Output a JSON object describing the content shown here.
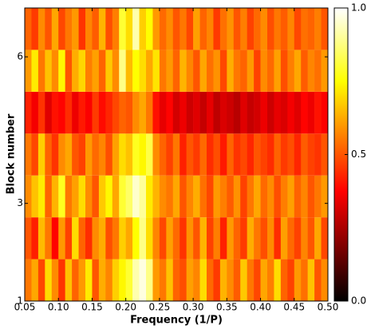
{
  "chart_data": {
    "type": "heatmap",
    "xlabel": "Frequency (1/P)",
    "ylabel": "Block number",
    "xlim": [
      0.05,
      0.5
    ],
    "xticks": [
      0.05,
      {
        "value": 0.1,
        "label": "0.10"
      },
      0.15,
      {
        "value": 0.2,
        "label": "0.20"
      },
      0.25,
      {
        "value": 0.3,
        "label": "0.30"
      },
      0.35,
      {
        "value": 0.4,
        "label": "0.40"
      },
      0.45,
      {
        "value": 0.5,
        "label": "0.50"
      }
    ],
    "ylim": [
      1,
      7
    ],
    "yticks": [
      1,
      3,
      6
    ],
    "colormap": "hot",
    "clim": [
      0,
      1
    ],
    "cticks": [
      {
        "value": 0,
        "label": "0.0"
      },
      0.5,
      {
        "value": 1,
        "label": "1.0"
      }
    ],
    "z": [
      [
        0.55,
        0.62,
        0.48,
        0.7,
        0.58,
        0.45,
        0.66,
        0.52,
        0.6,
        0.72,
        0.5,
        0.63,
        0.57,
        0.68,
        0.74,
        0.8,
        0.92,
        0.97,
        0.88,
        0.6,
        0.55,
        0.66,
        0.52,
        0.49,
        0.61,
        0.57,
        0.7,
        0.53,
        0.46,
        0.64,
        0.58,
        0.51,
        0.67,
        0.55,
        0.48,
        0.62,
        0.56,
        0.7,
        0.52,
        0.47,
        0.6,
        0.54,
        0.66,
        0.5,
        0.58
      ],
      [
        0.5,
        0.42,
        0.65,
        0.55,
        0.38,
        0.6,
        0.47,
        0.7,
        0.52,
        0.44,
        0.58,
        0.63,
        0.49,
        0.55,
        0.68,
        0.62,
        0.75,
        0.88,
        0.7,
        0.57,
        0.48,
        0.61,
        0.53,
        0.45,
        0.59,
        0.5,
        0.64,
        0.47,
        0.56,
        0.42,
        0.6,
        0.52,
        0.46,
        0.63,
        0.55,
        0.49,
        0.58,
        0.44,
        0.61,
        0.53,
        0.47,
        0.57,
        0.5,
        0.62,
        0.48
      ],
      [
        0.58,
        0.66,
        0.72,
        0.52,
        0.64,
        0.78,
        0.55,
        0.61,
        0.7,
        0.58,
        0.5,
        0.67,
        0.74,
        0.62,
        0.8,
        0.85,
        0.95,
        0.9,
        0.72,
        0.64,
        0.58,
        0.55,
        0.62,
        0.5,
        0.57,
        0.63,
        0.54,
        0.48,
        0.6,
        0.56,
        0.51,
        0.59,
        0.47,
        0.55,
        0.62,
        0.53,
        0.58,
        0.49,
        0.56,
        0.61,
        0.52,
        0.57,
        0.5,
        0.55,
        0.6
      ],
      [
        0.55,
        0.48,
        0.68,
        0.52,
        0.45,
        0.58,
        0.62,
        0.5,
        0.47,
        0.6,
        0.53,
        0.57,
        0.49,
        0.61,
        0.7,
        0.66,
        0.78,
        0.74,
        0.82,
        0.58,
        0.52,
        0.47,
        0.55,
        0.42,
        0.5,
        0.46,
        0.53,
        0.44,
        0.49,
        0.41,
        0.52,
        0.45,
        0.48,
        0.43,
        0.5,
        0.47,
        0.44,
        0.52,
        0.46,
        0.49,
        0.43,
        0.51,
        0.47,
        0.45,
        0.5
      ],
      [
        0.42,
        0.36,
        0.45,
        0.33,
        0.4,
        0.38,
        0.44,
        0.35,
        0.41,
        0.37,
        0.46,
        0.39,
        0.43,
        0.48,
        0.52,
        0.5,
        0.58,
        0.62,
        0.55,
        0.4,
        0.34,
        0.38,
        0.31,
        0.35,
        0.3,
        0.33,
        0.29,
        0.34,
        0.28,
        0.32,
        0.3,
        0.27,
        0.33,
        0.29,
        0.31,
        0.35,
        0.3,
        0.34,
        0.32,
        0.36,
        0.33,
        0.38,
        0.35,
        0.4,
        0.37
      ],
      [
        0.6,
        0.72,
        0.55,
        0.66,
        0.58,
        0.74,
        0.5,
        0.63,
        0.69,
        0.56,
        0.61,
        0.52,
        0.67,
        0.58,
        0.88,
        0.65,
        0.75,
        0.7,
        0.62,
        0.71,
        0.55,
        0.6,
        0.52,
        0.64,
        0.57,
        0.5,
        0.62,
        0.54,
        0.59,
        0.48,
        0.63,
        0.55,
        0.52,
        0.6,
        0.47,
        0.58,
        0.53,
        0.61,
        0.49,
        0.56,
        0.62,
        0.51,
        0.57,
        0.54,
        0.6
      ],
      [
        0.52,
        0.46,
        0.58,
        0.5,
        0.62,
        0.48,
        0.55,
        0.6,
        0.45,
        0.57,
        0.51,
        0.64,
        0.49,
        0.56,
        0.8,
        0.7,
        0.92,
        0.68,
        0.75,
        0.6,
        0.53,
        0.58,
        0.5,
        0.55,
        0.48,
        0.61,
        0.52,
        0.57,
        0.46,
        0.54,
        0.59,
        0.5,
        0.56,
        0.47,
        0.53,
        0.58,
        0.49,
        0.55,
        0.51,
        0.57,
        0.48,
        0.54,
        0.52,
        0.56,
        0.5
      ]
    ]
  }
}
